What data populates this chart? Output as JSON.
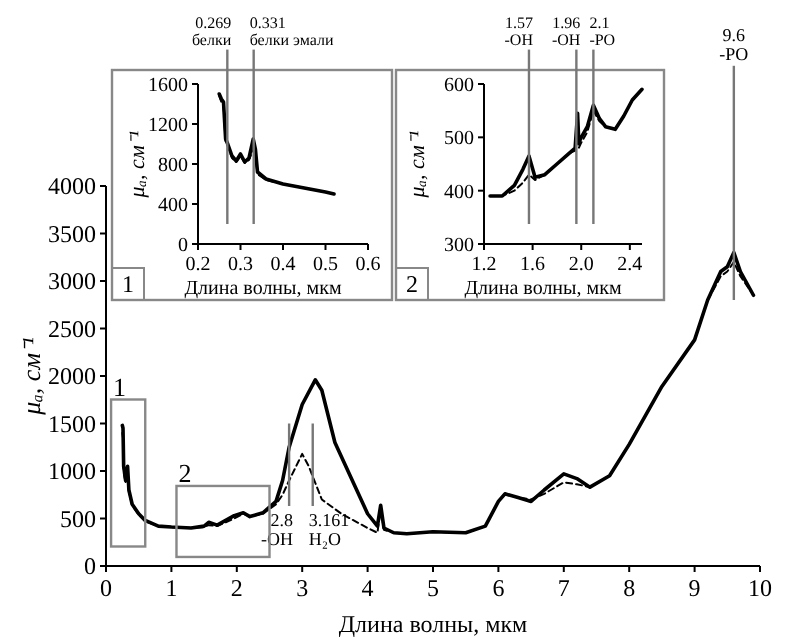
{
  "chart_data": [
    {
      "type": "line",
      "xlabel": "Длина волны,   мкм",
      "ylabel": "μₐ, см⁻¹",
      "xlim": [
        0,
        10
      ],
      "ylim": [
        0,
        4000
      ],
      "xticks": [
        0,
        1,
        2,
        3,
        4,
        5,
        6,
        7,
        8,
        9,
        10
      ],
      "yticks": [
        0,
        500,
        1000,
        1500,
        2000,
        2500,
        3000,
        3500,
        4000
      ],
      "series": [
        {
          "color": "#000000",
          "line_style": "solid",
          "x": [
            0.25,
            0.26,
            0.27,
            0.28,
            0.3,
            0.31,
            0.33,
            0.35,
            0.4,
            0.5,
            0.6,
            0.8,
            1.0,
            1.3,
            1.5,
            1.57,
            1.7,
            1.96,
            2.1,
            2.2,
            2.4,
            2.6,
            2.7,
            2.8,
            3.0,
            3.2,
            3.3,
            3.5,
            3.8,
            4.0,
            4.15,
            4.2,
            4.25,
            4.4,
            4.6,
            5.0,
            5.5,
            5.8,
            6.0,
            6.1,
            6.3,
            6.5,
            6.7,
            7.0,
            7.2,
            7.4,
            7.7,
            8.0,
            8.5,
            9.0,
            9.2,
            9.4,
            9.5,
            9.6,
            9.7,
            9.9
          ],
          "values": [
            1480,
            1450,
            1050,
            1000,
            900,
            950,
            1050,
            800,
            650,
            550,
            480,
            420,
            410,
            400,
            420,
            460,
            430,
            530,
            560,
            520,
            560,
            680,
            900,
            1250,
            1700,
            1960,
            1850,
            1300,
            850,
            550,
            420,
            640,
            400,
            350,
            340,
            360,
            350,
            420,
            680,
            760,
            720,
            680,
            800,
            970,
            920,
            830,
            950,
            1280,
            1890,
            2380,
            2800,
            3100,
            3150,
            3300,
            3100,
            2850
          ]
        },
        {
          "color": "#000000",
          "line_style": "dashed",
          "x": [
            0.25,
            0.26,
            0.27,
            0.28,
            0.3,
            0.31,
            0.33,
            0.35,
            0.4,
            0.5,
            0.6,
            0.8,
            1.0,
            1.3,
            1.5,
            1.57,
            1.7,
            1.96,
            2.1,
            2.2,
            2.4,
            2.6,
            2.7,
            2.8,
            3.0,
            3.1,
            3.3,
            3.6,
            4.0,
            4.15,
            4.2,
            4.25,
            4.4,
            4.6,
            5.0,
            5.5,
            5.8,
            6.0,
            6.1,
            6.3,
            6.5,
            6.7,
            7.0,
            7.2,
            7.4,
            7.7,
            8.0,
            8.5,
            9.0,
            9.2,
            9.4,
            9.5,
            9.6,
            9.7,
            9.9
          ],
          "values": [
            1400,
            1350,
            1000,
            950,
            880,
            900,
            950,
            780,
            640,
            540,
            470,
            420,
            410,
            400,
            410,
            430,
            420,
            500,
            550,
            520,
            550,
            650,
            750,
            900,
            1180,
            1050,
            700,
            550,
            400,
            350,
            600,
            380,
            350,
            340,
            360,
            350,
            420,
            680,
            760,
            720,
            700,
            760,
            880,
            860,
            830,
            950,
            1280,
            1890,
            2380,
            2800,
            3050,
            3100,
            3200,
            3050,
            2850
          ]
        }
      ],
      "ref_lines": [
        {
          "axis": "x",
          "value": 2.8,
          "label": "2.8\n-OH"
        },
        {
          "axis": "x",
          "value": 3.161,
          "label": "3.161\nH₂O"
        },
        {
          "axis": "x",
          "value": 9.6,
          "label": "9.6\n-PO"
        }
      ],
      "annotations": [
        "1",
        "2"
      ]
    },
    {
      "type": "line",
      "xlabel": "Длина волны,   мкм",
      "ylabel": "μₐ, см⁻¹",
      "xlim": [
        0.2,
        0.6
      ],
      "ylim": [
        0,
        1600
      ],
      "xticks": [
        0.2,
        0.3,
        0.4,
        0.5,
        0.6
      ],
      "yticks": [
        0,
        400,
        800,
        1200,
        1600
      ],
      "series": [
        {
          "color": "#000000",
          "line_style": "solid",
          "x": [
            0.25,
            0.255,
            0.26,
            0.265,
            0.27,
            0.28,
            0.29,
            0.3,
            0.31,
            0.32,
            0.33,
            0.335,
            0.34,
            0.36,
            0.4,
            0.45,
            0.5,
            0.52
          ],
          "values": [
            1500,
            1450,
            1420,
            1050,
            1000,
            880,
            830,
            900,
            820,
            860,
            1050,
            950,
            720,
            650,
            600,
            560,
            520,
            500
          ]
        },
        {
          "color": "#000000",
          "line_style": "dashed",
          "x": [
            0.25,
            0.255,
            0.26,
            0.265,
            0.27,
            0.28,
            0.29,
            0.3,
            0.31,
            0.32,
            0.33,
            0.335,
            0.34,
            0.36,
            0.4,
            0.45,
            0.5,
            0.52
          ],
          "values": [
            1480,
            1420,
            1380,
            1020,
            980,
            860,
            820,
            880,
            810,
            840,
            950,
            900,
            700,
            640,
            600,
            560,
            520,
            500
          ]
        }
      ],
      "ref_lines": [
        {
          "axis": "x",
          "value": 0.269,
          "label": "0.269\nбелки"
        },
        {
          "axis": "x",
          "value": 0.331,
          "label": "0.331\nбелки эмали"
        }
      ],
      "annotations": [
        "1"
      ]
    },
    {
      "type": "line",
      "xlabel": "Длина волны,   мкм",
      "ylabel": "μₐ, см⁻¹",
      "xlim": [
        1.2,
        2.5
      ],
      "ylim": [
        300,
        600
      ],
      "xticks": [
        1.2,
        1.6,
        {
          "value": 2,
          "label": "2.0"
        },
        2.4
      ],
      "yticks": [
        300,
        400,
        500,
        600
      ],
      "series": [
        {
          "color": "#000000",
          "line_style": "solid",
          "x": [
            1.25,
            1.35,
            1.45,
            1.52,
            1.57,
            1.62,
            1.7,
            1.8,
            1.9,
            1.95,
            1.97,
            1.98,
            2.0,
            2.05,
            2.1,
            2.15,
            2.2,
            2.28,
            2.35,
            2.42,
            2.5
          ],
          "values": [
            390,
            390,
            410,
            440,
            465,
            425,
            430,
            450,
            470,
            480,
            545,
            490,
            500,
            520,
            560,
            535,
            520,
            515,
            540,
            570,
            590
          ]
        },
        {
          "color": "#000000",
          "line_style": "dashed",
          "x": [
            1.25,
            1.35,
            1.45,
            1.52,
            1.57,
            1.62,
            1.7,
            1.8,
            1.9,
            1.95,
            1.97,
            1.98,
            2.0,
            2.05,
            2.1,
            2.15,
            2.2,
            2.28,
            2.35,
            2.42,
            2.5
          ],
          "values": [
            390,
            390,
            400,
            415,
            430,
            420,
            430,
            450,
            470,
            475,
            500,
            480,
            490,
            510,
            550,
            530,
            520,
            515,
            540,
            570,
            590
          ]
        }
      ],
      "ref_lines": [
        {
          "axis": "x",
          "value": 1.57,
          "label": "1.57\n-OH"
        },
        {
          "axis": "x",
          "value": 1.96,
          "label": "1.96\n-OH"
        },
        {
          "axis": "x",
          "value": 2.1,
          "label": "2.1\n-PO"
        }
      ],
      "annotations": [
        "2"
      ]
    }
  ]
}
